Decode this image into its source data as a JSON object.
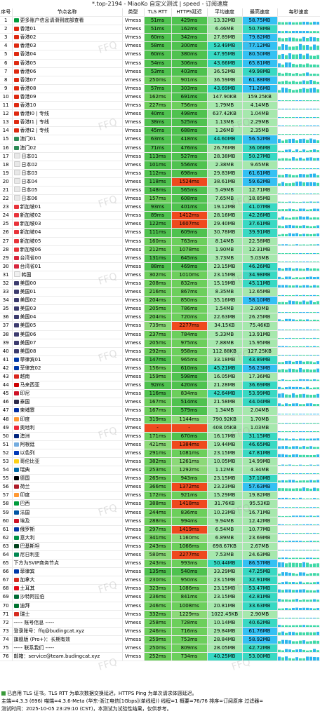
{
  "title": "*.top-2194 - MiaoKo 自定义测试 | speed - 订阅速度",
  "headers": [
    "序号",
    "节点名称",
    "类型",
    "TLS RTT",
    "HTTPS延迟",
    "平均速度",
    "最高速度",
    "每秒速度"
  ],
  "watermark": "FFQ",
  "colors": {
    "green": "#4fc24f",
    "red": "#ef4a1e",
    "speed": "#a6e8ad",
    "max": "#38d9c3",
    "highlight": "#34c1f3"
  },
  "rows": [
    [
      "1",
      "更多账户信息请滑到底部查看",
      "Vmess",
      "51ms",
      "429ms",
      "13.32MB",
      "58.75MB",
      "br"
    ],
    [
      "2",
      "香港01",
      "Vmess",
      "51ms",
      "162ms",
      "6.46MB",
      "50.78MB",
      "hk"
    ],
    [
      "3",
      "香港02",
      "Vmess",
      "60ms",
      "342ms",
      "27.89MB",
      "79.82MB",
      "hk"
    ],
    [
      "4",
      "香港03",
      "Vmess",
      "58ms",
      "300ms",
      "53.49MB",
      "77.12MB",
      "hk"
    ],
    [
      "5",
      "香港04",
      "Vmess",
      "60ms",
      "380ms",
      "47.95MB",
      "80.50MB",
      "hk"
    ],
    [
      "6",
      "香港05",
      "Vmess",
      "54ms",
      "306ms",
      "43.66MB",
      "65.81MB",
      "hk"
    ],
    [
      "7",
      "香港06",
      "Vmess",
      "53ms",
      "403ms",
      "36.52MB",
      "49.98MB",
      "hk"
    ],
    [
      "8",
      "香港07",
      "Vmess",
      "250ms",
      "901ms",
      "36.59MB",
      "61.88MB",
      "hk"
    ],
    [
      "9",
      "香港08",
      "Vmess",
      "57ms",
      "303ms",
      "43.69MB",
      "71.26MB",
      "hk"
    ],
    [
      "10",
      "香港09",
      "Vmess",
      "162ms",
      "691ms",
      "147.90KB",
      "159.25KB",
      "hk"
    ],
    [
      "11",
      "香港10",
      "Vmess",
      "227ms",
      "756ms",
      "1.79MB",
      "4.14MB",
      "hk"
    ],
    [
      "12",
      "香港I0 | 专线",
      "Vmess",
      "40ms",
      "498ms",
      "637.42KB",
      "1.04MB",
      "hk"
    ],
    [
      "13",
      "香港I1 | 专线",
      "Vmess",
      "38ms",
      "525ms",
      "1.13MB",
      "2.29MB",
      "hk"
    ],
    [
      "14",
      "香港I2 | 专线",
      "Vmess",
      "45ms",
      "688ms",
      "1.26MB",
      "2.35MB",
      "hk"
    ],
    [
      "15",
      "澳门01",
      "Vmess",
      "63ms",
      "418ms",
      "44.60MB",
      "56.52MB",
      "mo"
    ],
    [
      "16",
      "澳门02",
      "Vmess",
      "71ms",
      "476ms",
      "26.76MB",
      "36.06MB",
      "mo"
    ],
    [
      "17",
      "日本01",
      "Vmess",
      "113ms",
      "527ms",
      "28.38MB",
      "50.27MB",
      "jp"
    ],
    [
      "18",
      "日本02",
      "Vmess",
      "101ms",
      "556ms",
      "2.38MB",
      "9.65MB",
      "jp"
    ],
    [
      "19",
      "日本03",
      "Vmess",
      "112ms",
      "698ms",
      "29.83MB",
      "61.61MB",
      "jp"
    ],
    [
      "20",
      "日本04",
      "Vmess",
      "118ms",
      "1524ms",
      "38.61MB",
      "59.62MB",
      "jp"
    ],
    [
      "21",
      "日本05",
      "Vmess",
      "148ms",
      "565ms",
      "5.49MB",
      "12.71MB",
      "jp"
    ],
    [
      "22",
      "日本06",
      "Vmess",
      "157ms",
      "608ms",
      "7.65MB",
      "18.85MB",
      "jp"
    ],
    [
      "23",
      "新加坡01",
      "Vmess",
      "93ms",
      "401ms",
      "19.12MB",
      "41.07MB",
      "sg"
    ],
    [
      "24",
      "新加坡02",
      "Vmess",
      "89ms",
      "1412ms",
      "28.16MB",
      "42.26MB",
      "sg"
    ],
    [
      "25",
      "新加坡03",
      "Vmess",
      "122ms",
      "1607ms",
      "29.40MB",
      "37.61MB",
      "sg"
    ],
    [
      "26",
      "新加坡04",
      "Vmess",
      "111ms",
      "609ms",
      "30.78MB",
      "39.91MB",
      "sg"
    ],
    [
      "27",
      "新加坡05",
      "Vmess",
      "160ms",
      "763ms",
      "8.14MB",
      "22.58MB",
      "sg"
    ],
    [
      "28",
      "新加坡06",
      "Vmess",
      "212ms",
      "1078ms",
      "1.90MB",
      "12.31MB",
      "sg"
    ],
    [
      "29",
      "台湾省00",
      "Vmess",
      "131ms",
      "645ms",
      "3.73MB",
      "5.03MB",
      "tw"
    ],
    [
      "30",
      "台湾省01",
      "Vmess",
      "88ms",
      "469ms",
      "23.15MB",
      "46.26MB",
      "tw"
    ],
    [
      "31",
      "韩国",
      "Vmess",
      "302ms",
      "1010ms",
      "23.15MB",
      "34.98MB",
      "kr"
    ],
    [
      "32",
      "美国00",
      "Vmess",
      "208ms",
      "832ms",
      "15.19MB",
      "45.11MB",
      "us"
    ],
    [
      "33",
      "美国01",
      "Vmess",
      "216ms",
      "867ms",
      "8.35MB",
      "12.65MB",
      "us"
    ],
    [
      "34",
      "美国02",
      "Vmess",
      "204ms",
      "850ms",
      "35.16MB",
      "58.10MB",
      "us"
    ],
    [
      "35",
      "美国03",
      "Vmess",
      "205ms",
      "786ms",
      "1.54MB",
      "2.80MB",
      "us"
    ],
    [
      "36",
      "美国04",
      "Vmess",
      "204ms",
      "720ms",
      "22.63MB",
      "26.25MB",
      "us"
    ],
    [
      "37",
      "美国05",
      "Vmess",
      "739ms",
      "2277ms",
      "34.15KB",
      "75.46KB",
      "us"
    ],
    [
      "38",
      "美国06",
      "Vmess",
      "237ms",
      "784ms",
      "5.33MB",
      "13.91MB",
      "us"
    ],
    [
      "39",
      "美国07",
      "Vmess",
      "205ms",
      "975ms",
      "7.88MB",
      "15.95MB",
      "us"
    ],
    [
      "40",
      "美国08",
      "Vmess",
      "292ms",
      "958ms",
      "112.88KB",
      "127.25KB",
      "us"
    ],
    [
      "41",
      "菲律宾01",
      "Vmess",
      "147ms",
      "965ms",
      "33.18MB",
      "43.89MB",
      "ph"
    ],
    [
      "42",
      "菲律宾02",
      "Vmess",
      "156ms",
      "610ms",
      "45.21MB",
      "56.23MB",
      "ph"
    ],
    [
      "43",
      "越南",
      "Vmess",
      "159ms",
      "598ms",
      "16.05MB",
      "17.36MB",
      "vn"
    ],
    [
      "44",
      "马来西亚",
      "Vmess",
      "92ms",
      "420ms",
      "21.28MB",
      "36.69MB",
      "my"
    ],
    [
      "45",
      "印尼",
      "Vmess",
      "116ms",
      "834ms",
      "42.64MB",
      "53.99MB",
      "id"
    ],
    [
      "46",
      "泰国",
      "Vmess",
      "167ms",
      "514ms",
      "21.58MB",
      "44.04MB",
      "th"
    ],
    [
      "47",
      "柬埔寨",
      "Vmess",
      "167ms",
      "579ms",
      "1.34MB",
      "2.04MB",
      "kh"
    ],
    [
      "48",
      "印度",
      "Vmess",
      "319ms",
      "1144ms",
      "790.92KB",
      "1.70MB",
      "in"
    ],
    [
      "49",
      "奥地利",
      "Vmess",
      "-",
      "-",
      "408.05KB",
      "1.03MB",
      "at"
    ],
    [
      "50",
      "澳洲",
      "Vmess",
      "171ms",
      "670ms",
      "16.17MB",
      "31.15MB",
      "au"
    ],
    [
      "51",
      "阿根廷",
      "Vmess",
      "421ms",
      "1384ms",
      "19.44MB",
      "46.65MB",
      "ar"
    ],
    [
      "52",
      "以色列",
      "Vmess",
      "291ms",
      "1081ms",
      "23.15MB",
      "47.81MB",
      "il"
    ],
    [
      "53",
      "哥伦比亚",
      "Vmess",
      "382ms",
      "1261ms",
      "10.05MB",
      "14.99MB",
      "co"
    ],
    [
      "54",
      "瑞典",
      "Vmess",
      "253ms",
      "1292ms",
      "1.12MB",
      "4.34MB",
      "se"
    ],
    [
      "55",
      "德国",
      "Vmess",
      "265ms",
      "943ms",
      "23.15MB",
      "37.10MB",
      "de"
    ],
    [
      "56",
      "荷兰",
      "Vmess",
      "366ms",
      "1372ms",
      "23.23MB",
      "57.63MB",
      "nl"
    ],
    [
      "57",
      "印度",
      "Vmess",
      "172ms",
      "921ms",
      "15.29MB",
      "19.82MB",
      "in"
    ],
    [
      "58",
      "巴西",
      "Vmess",
      "388ms",
      "1418ms",
      "31.76KB",
      "95.53KB",
      "br"
    ],
    [
      "59",
      "法国",
      "Vmess",
      "244ms",
      "836ms",
      "10.23MB",
      "16.71MB",
      "fr"
    ],
    [
      "60",
      "埃及",
      "Vmess",
      "288ms",
      "994ms",
      "9.94MB",
      "12.42MB",
      "eg"
    ],
    [
      "61",
      "俄罗斯",
      "Vmess",
      "297ms",
      "1419ms",
      "6.54MB",
      "10.77MB",
      "ru"
    ],
    [
      "62",
      "意大利",
      "Vmess",
      "341ms",
      "1160ms",
      "6.89MB",
      "23.69MB",
      "it"
    ],
    [
      "63",
      "巴基斯坦",
      "Vmess",
      "243ms",
      "1066ms",
      "698.67KB",
      "2.67MB",
      "pk"
    ],
    [
      "64",
      "尼日利亚",
      "Vmess",
      "580ms",
      "2277ms",
      "7.53MB",
      "24.63MB",
      "ng"
    ],
    [
      "65",
      "下方为SVIP商务节点",
      "Vmess",
      "243ms",
      "993ms",
      "50.44MB",
      "86.57MB",
      "none"
    ],
    [
      "66",
      "菲律宾",
      "Vmess",
      "135ms",
      "540ms",
      "33.29MB",
      "47.25MB",
      "ph"
    ],
    [
      "67",
      "加拿大",
      "Vmess",
      "230ms",
      "950ms",
      "23.15MB",
      "32.91MB",
      "ca"
    ],
    [
      "68",
      "土耳其",
      "Vmess",
      "323ms",
      "1086ms",
      "23.15MB",
      "53.47MB",
      "tr"
    ],
    [
      "69",
      "沙特阿拉伯",
      "Vmess",
      "236ms",
      "841ms",
      "23.15MB",
      "42.81MB",
      "sa"
    ],
    [
      "70",
      "迪拜",
      "Vmess",
      "246ms",
      "1008ms",
      "20.81MB",
      "33.63MB",
      "ae"
    ],
    [
      "71",
      "瑞士",
      "Vmess",
      "332ms",
      "1229ms",
      "1022.45KB",
      "2.90MB",
      "ch"
    ],
    [
      "72",
      "----- 账号信息 -----",
      "Vmess",
      "258ms",
      "728ms",
      "10.14MB",
      "40.62MB",
      "none"
    ],
    [
      "73",
      "登录账号：ffq@budingcat.xyz",
      "Vmess",
      "246ms",
      "716ms",
      "29.84MB",
      "61.76MB",
      "none"
    ],
    [
      "74",
      "旗舰版 (Pro+)：长期有效",
      "Vmess",
      "259ms",
      "753ms",
      "28.84MB",
      "58.92MB",
      "none"
    ],
    [
      "75",
      "----- 联系我们 -----",
      "Vmess",
      "250ms",
      "809ms",
      "28.05MB",
      "42.72MB",
      "none"
    ],
    [
      "76",
      "邮箱：service@team.budingcat.xyz",
      "Vmess",
      "252ms",
      "734ms",
      "40.25MB",
      "53.00MB",
      "none"
    ]
  ],
  "footer": {
    "line1": "已启用 TLS 证书。TLS RTT 为单次数据交换延迟，HTTPS Ping 为单次请求体感延迟。",
    "line2": "主端=4.3.3 (696) 喵端=4.3.6-Meta (华东-浙江电信[1Gbps](单线程)) 线程=1 概要=76/76 排序=订阅原序 过滤器=",
    "line3": "测试时间：2025-10-05 23:29:10 (CST)，本测试为试验性结果，仅供参考。"
  }
}
